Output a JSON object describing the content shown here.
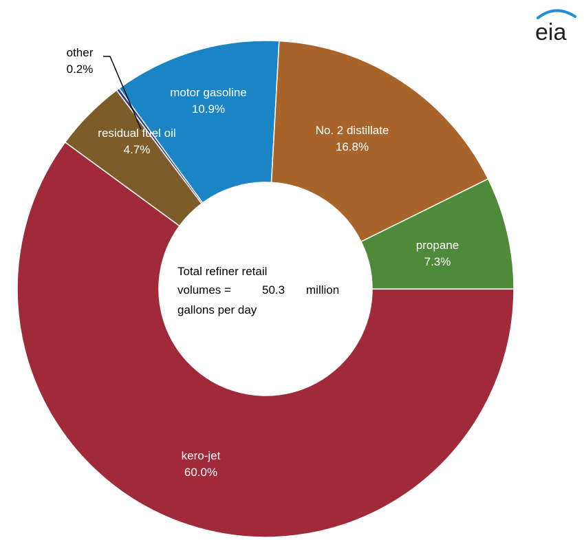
{
  "logo": {
    "text": "eia",
    "accent_color": "#1f8fd6"
  },
  "center": {
    "line1": "Total refiner retail",
    "line2_prefix": "volumes =",
    "line2_value": "50.3",
    "line2_suffix": "million",
    "line3": "gallons per day"
  },
  "chart_data": {
    "type": "pie",
    "donut": true,
    "title": "",
    "unit": "percent",
    "start_angle_deg": 90,
    "direction": "clockwise",
    "slices": [
      {
        "name": "kero-jet",
        "value": 60.0,
        "label": "60.0%",
        "color": "#a02a3a",
        "label_color": "#ffffff"
      },
      {
        "name": "residual fuel oil",
        "value": 4.7,
        "label": "4.7%",
        "color": "#7d5c2a",
        "label_color": "#ffffff"
      },
      {
        "name": "other",
        "value": 0.2,
        "label": "0.2%",
        "color": "#2b3a8c",
        "label_color": "#000000"
      },
      {
        "name": "motor gasoline",
        "value": 10.9,
        "label": "10.9%",
        "color": "#1b84c5",
        "label_color": "#ffffff"
      },
      {
        "name": "No. 2 distillate",
        "value": 16.8,
        "label": "16.8%",
        "color": "#a7642b",
        "label_color": "#ffffff"
      },
      {
        "name": "propane",
        "value": 7.3,
        "label": "7.3%",
        "color": "#4f8a3b",
        "label_color": "#ffffff"
      }
    ]
  }
}
